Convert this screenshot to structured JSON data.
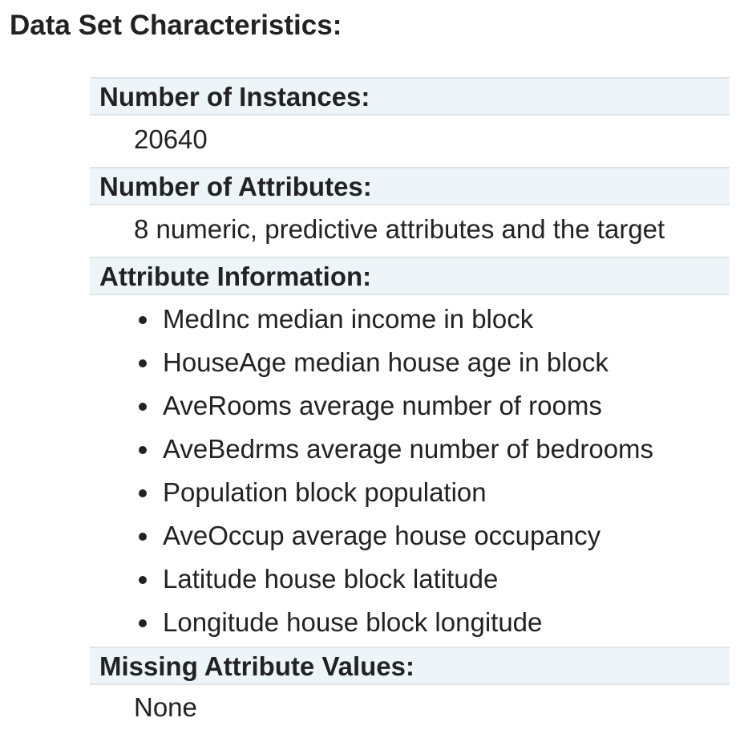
{
  "heading": "Data Set Characteristics:",
  "fields": {
    "instances": {
      "term": "Number of Instances:",
      "value": "20640"
    },
    "attributes": {
      "term": "Number of Attributes:",
      "value": "8 numeric, predictive attributes and the target"
    },
    "attribute_info": {
      "term": "Attribute Information:",
      "items": [
        "MedInc median income in block",
        "HouseAge median house age in block",
        "AveRooms average number of rooms",
        "AveBedrms average number of bedrooms",
        "Population block population",
        "AveOccup average house occupancy",
        "Latitude house block latitude",
        "Longitude house block longitude"
      ]
    },
    "missing": {
      "term": "Missing Attribute Values:",
      "value": "None"
    }
  }
}
